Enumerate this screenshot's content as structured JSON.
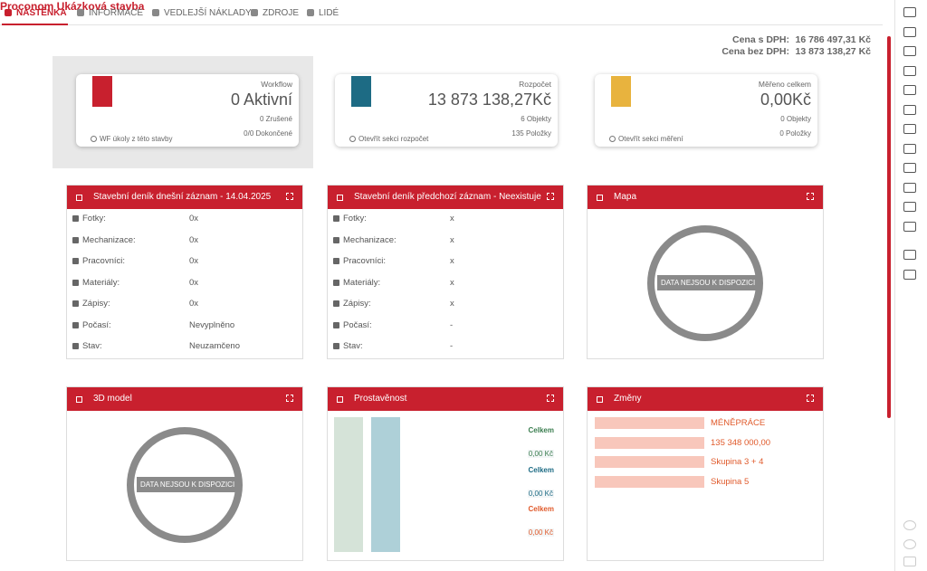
{
  "tabs": [
    "NÁSTĚNKA",
    "INFORMACE",
    "VEDLEJŠÍ NÁKLADY",
    "ZDROJE",
    "LIDÉ"
  ],
  "project": {
    "title": "Proconom Ukázková stavba"
  },
  "prices": [
    {
      "label": "Cena s DPH:",
      "value": "16 786 497,31 Kč"
    },
    {
      "label": "Cena bez DPH:",
      "value": "13 873 138,27 Kč"
    }
  ],
  "cards": [
    {
      "label": "Workflow",
      "value": "0 Aktivní",
      "lines": [
        "0 Zrušené",
        "0/0 Dokončené"
      ],
      "link": "WF úkoly z této stavby"
    },
    {
      "label": "Rozpočet",
      "value": "13 873 138,27Kč",
      "lines": [
        "6 Objekty",
        "135 Položky"
      ],
      "link": "Otevřít sekci rozpočet"
    },
    {
      "label": "Měřeno celkem",
      "value": "0,00Kč",
      "lines": [
        "0 Objekty",
        "0 Položky"
      ],
      "link": "Otevřít sekci měření"
    }
  ],
  "diaries": [
    {
      "title": "Stavební deník dnešní záznam - 14.04.2025",
      "rows": [
        {
          "label": "Fotky:",
          "value": "0x"
        },
        {
          "label": "Mechanizace:",
          "value": "0x"
        },
        {
          "label": "Pracovníci:",
          "value": "0x"
        },
        {
          "label": "Materiály:",
          "value": "0x"
        },
        {
          "label": "Zápisy:",
          "value": "0x"
        },
        {
          "label": "Počasí:",
          "value": "Nevyplněno"
        },
        {
          "label": "Stav:",
          "value": "Neuzamčeno"
        }
      ]
    },
    {
      "title": "Stavební deník předchozí záznam - Neexistuje",
      "rows": [
        {
          "label": "Fotky:",
          "value": "x"
        },
        {
          "label": "Mechanizace:",
          "value": "x"
        },
        {
          "label": "Pracovníci:",
          "value": "x"
        },
        {
          "label": "Materiály:",
          "value": "x"
        },
        {
          "label": "Zápisy:",
          "value": "x"
        },
        {
          "label": "Počasí:",
          "value": "-"
        },
        {
          "label": "Stav:",
          "value": "-"
        }
      ]
    }
  ],
  "map": {
    "title": "Mapa",
    "empty": "DATA NEJSOU K DISPOZICI"
  },
  "model3d": {
    "title": "3D model",
    "empty": "DATA NEJSOU K DISPOZICI"
  },
  "progress": {
    "title": "Prostavěnost",
    "items": [
      {
        "label": "Celkem",
        "value": "0,00 Kč"
      },
      {
        "label": "Celkem",
        "value": "0,00 Kč"
      },
      {
        "label": "Celkem",
        "value": "0,00 Kč"
      }
    ]
  },
  "changes": {
    "title": "Změny",
    "items": [
      "MÉNĚPRÁCE",
      "135 348 000,00",
      "Skupina 3 + 4",
      "Skupina 5"
    ]
  }
}
